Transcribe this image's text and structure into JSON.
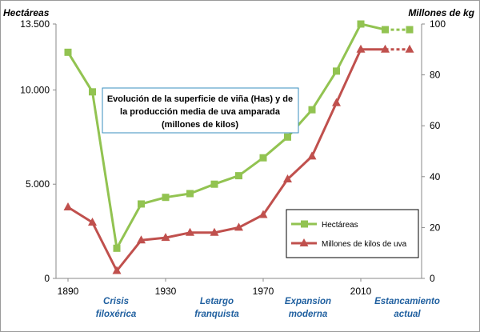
{
  "chart_data": {
    "type": "line",
    "title_lines": [
      "Evolución  de la superficie de viña (Has) y de",
      "la producción  media de uva amparada",
      "(millones de kilos)"
    ],
    "y_left_label": "Hectáreas",
    "y_right_label": "Millones  de kg",
    "ylim_left": [
      0,
      13500
    ],
    "ylim_right": [
      0,
      100
    ],
    "y_left_ticks": [
      {
        "value": 0,
        "label": "0"
      },
      {
        "value": 5000,
        "label": "5.000"
      },
      {
        "value": 10000,
        "label": "10.000"
      },
      {
        "value": 13500,
        "label": "13.500"
      }
    ],
    "y_right_ticks": [
      {
        "value": 0,
        "label": "0"
      },
      {
        "value": 20,
        "label": "20"
      },
      {
        "value": 40,
        "label": "40"
      },
      {
        "value": 60,
        "label": "60"
      },
      {
        "value": 80,
        "label": "80"
      },
      {
        "value": 100,
        "label": "100"
      }
    ],
    "xlim": [
      1890,
      2030
    ],
    "x_ticks": [
      {
        "value": 1890,
        "label": "1890"
      },
      {
        "value": 1930,
        "label": "1930"
      },
      {
        "value": 1970,
        "label": "1970"
      },
      {
        "value": 2010,
        "label": "2010"
      }
    ],
    "x": [
      1890,
      1900,
      1910,
      1920,
      1930,
      1940,
      1950,
      1960,
      1970,
      1980,
      1990,
      2000,
      2010,
      2020,
      2030
    ],
    "series": [
      {
        "name": "Hectáreas",
        "axis": "left",
        "color": "#92c351",
        "marker": "square",
        "values": [
          12000,
          9900,
          1600,
          3950,
          4300,
          4500,
          5000,
          5450,
          6400,
          7500,
          8950,
          11000,
          13500,
          13200,
          13200
        ],
        "dotted_last": true
      },
      {
        "name": "Millones de kilos de uva",
        "axis": "right",
        "color": "#c0504d",
        "marker": "triangle",
        "values": [
          28,
          22,
          3,
          15,
          16,
          18,
          18,
          20,
          25,
          39,
          48,
          69,
          90,
          90,
          90
        ],
        "dotted_last": true
      }
    ],
    "periods": [
      {
        "lines": [
          "Crisis",
          "filoxérica"
        ]
      },
      {
        "lines": [
          "Letargo",
          "franquista"
        ]
      },
      {
        "lines": [
          "Expansion",
          "moderna"
        ]
      },
      {
        "lines": [
          "Estancamiento",
          "actual"
        ]
      }
    ],
    "legend_position": "bottom-right",
    "grid": false
  }
}
